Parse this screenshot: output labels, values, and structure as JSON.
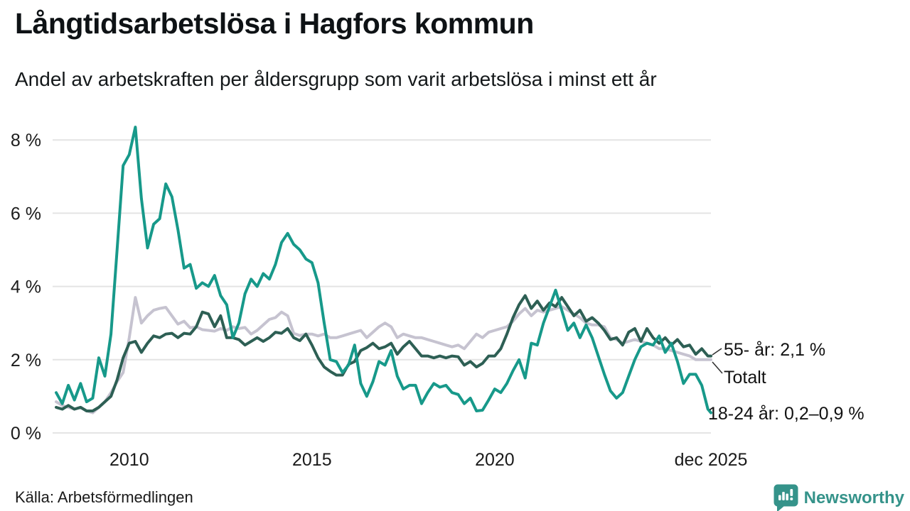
{
  "chart_data": {
    "type": "line",
    "title": "Långtidsarbetslösa i Hagfors kommun",
    "subtitle": "Andel av arbetskraften per åldersgrupp som varit arbetslösa i minst ett år",
    "source": "Källa: Arbetsförmedlingen",
    "brand": "Newsworthy",
    "x_start": "2008-01",
    "x_end": "2025-12",
    "points_every_months": 2,
    "x_total_months": 215,
    "ylim": [
      0,
      8.6
    ],
    "grid": true,
    "y_ticks": [
      0,
      2,
      4,
      6,
      8
    ],
    "y_tick_suffix": " %",
    "x_ticks": [
      {
        "label": "2010",
        "month": 24
      },
      {
        "label": "2015",
        "month": 84
      },
      {
        "label": "2020",
        "month": 144
      },
      {
        "label": "dec 2025",
        "month": 215
      }
    ],
    "series": [
      {
        "name": "Totalt",
        "key": "totalt",
        "color": "#c6c3d0",
        "values": [
          0.85,
          0.75,
          0.7,
          0.65,
          0.7,
          0.6,
          0.55,
          0.7,
          0.85,
          1.1,
          1.4,
          1.65,
          2.6,
          3.7,
          3.0,
          3.2,
          3.35,
          3.4,
          3.43,
          3.2,
          2.97,
          3.05,
          2.87,
          2.9,
          2.82,
          2.8,
          2.78,
          2.85,
          2.8,
          2.9,
          2.85,
          2.88,
          2.7,
          2.8,
          2.95,
          3.1,
          3.15,
          3.3,
          3.2,
          2.72,
          2.66,
          2.7,
          2.7,
          2.65,
          2.7,
          2.6,
          2.6,
          2.65,
          2.7,
          2.75,
          2.8,
          2.6,
          2.75,
          2.9,
          3.0,
          2.9,
          2.6,
          2.7,
          2.65,
          2.6,
          2.6,
          2.55,
          2.5,
          2.45,
          2.4,
          2.35,
          2.4,
          2.3,
          2.5,
          2.7,
          2.6,
          2.75,
          2.8,
          2.85,
          2.9,
          3.05,
          3.25,
          3.4,
          3.2,
          3.35,
          3.3,
          3.35,
          3.4,
          3.45,
          3.35,
          3.25,
          3.15,
          3.0,
          2.95,
          2.95,
          2.9,
          2.6,
          2.55,
          2.45,
          2.5,
          2.55,
          2.5,
          2.45,
          2.4,
          2.3,
          2.3,
          2.25,
          2.2,
          2.15,
          2.1,
          2.0,
          2.0,
          2.0,
          2.0
        ]
      },
      {
        "name": "55- år",
        "key": "55-ar",
        "color": "#2d5f54",
        "values": [
          0.7,
          0.65,
          0.75,
          0.65,
          0.7,
          0.6,
          0.6,
          0.7,
          0.85,
          1.0,
          1.45,
          2.05,
          2.45,
          2.5,
          2.2,
          2.45,
          2.65,
          2.6,
          2.7,
          2.72,
          2.6,
          2.72,
          2.7,
          2.9,
          3.3,
          3.25,
          2.9,
          3.2,
          2.6,
          2.6,
          2.55,
          2.4,
          2.5,
          2.6,
          2.5,
          2.6,
          2.75,
          2.72,
          2.85,
          2.6,
          2.52,
          2.7,
          2.4,
          2.05,
          1.8,
          1.68,
          1.58,
          1.58,
          1.87,
          1.95,
          2.25,
          2.33,
          2.45,
          2.3,
          2.35,
          2.45,
          2.15,
          2.35,
          2.5,
          2.3,
          2.1,
          2.1,
          2.05,
          2.1,
          2.05,
          2.1,
          2.08,
          1.85,
          1.95,
          1.8,
          1.9,
          2.1,
          2.1,
          2.3,
          2.7,
          3.15,
          3.5,
          3.75,
          3.4,
          3.6,
          3.35,
          3.55,
          3.45,
          3.7,
          3.45,
          3.2,
          3.35,
          3.05,
          3.15,
          3.0,
          2.8,
          2.55,
          2.6,
          2.4,
          2.75,
          2.85,
          2.5,
          2.85,
          2.6,
          2.45,
          2.6,
          2.4,
          2.55,
          2.35,
          2.4,
          2.15,
          2.3,
          2.1,
          2.1
        ]
      },
      {
        "name": "18-24 år",
        "key": "18-24-ar",
        "color": "#17998a",
        "values": [
          1.1,
          0.8,
          1.3,
          0.9,
          1.35,
          0.85,
          0.95,
          2.05,
          1.55,
          2.7,
          5.0,
          7.3,
          7.6,
          8.35,
          6.4,
          5.05,
          5.7,
          5.85,
          6.8,
          6.45,
          5.55,
          4.5,
          4.6,
          3.95,
          4.1,
          4.0,
          4.3,
          3.75,
          3.5,
          2.6,
          3.0,
          3.8,
          4.2,
          4.0,
          4.35,
          4.2,
          4.6,
          5.2,
          5.45,
          5.15,
          5.0,
          4.75,
          4.65,
          4.1,
          3.0,
          2.0,
          1.95,
          1.65,
          1.85,
          2.4,
          1.35,
          1.0,
          1.4,
          1.95,
          1.85,
          2.25,
          1.55,
          1.2,
          1.3,
          1.3,
          0.8,
          1.1,
          1.35,
          1.25,
          1.3,
          1.1,
          1.05,
          0.8,
          0.95,
          0.6,
          0.62,
          0.9,
          1.2,
          1.1,
          1.35,
          1.7,
          2.0,
          1.5,
          2.45,
          2.4,
          3.0,
          3.45,
          3.9,
          3.35,
          2.8,
          3.0,
          2.6,
          2.95,
          2.6,
          2.1,
          1.6,
          1.15,
          0.95,
          1.1,
          1.55,
          2.0,
          2.35,
          2.45,
          2.4,
          2.65,
          2.2,
          2.45,
          1.95,
          1.35,
          1.6,
          1.6,
          1.3,
          0.65,
          0.55
        ]
      }
    ],
    "annotations": {
      "age55": {
        "text": "55- år: 2,1 %"
      },
      "totalt": {
        "text": "Totalt"
      },
      "age18_24": {
        "text": "18-24 år: 0,2–0,9 %"
      }
    }
  },
  "style_colors": {
    "grid": "#e4e4e4",
    "brand_teal": "#35938a"
  }
}
